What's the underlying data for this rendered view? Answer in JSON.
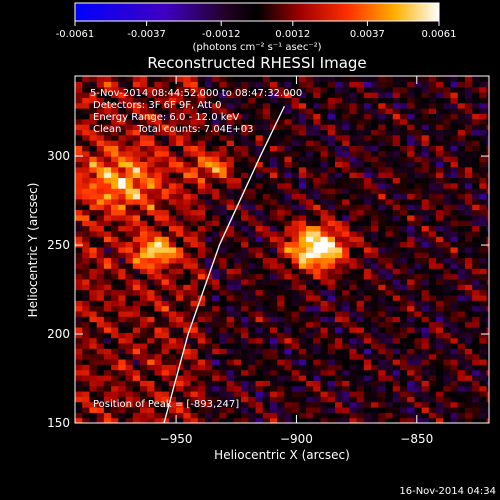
{
  "chart_data": {
    "type": "heatmap",
    "title": "Reconstructed RHESSI Image",
    "xlabel": "Heliocentric X (arcsec)",
    "ylabel": "Heliocentric Y (arcsec)",
    "xlim": [
      -992,
      -820
    ],
    "ylim": [
      150,
      345
    ],
    "x_ticks": [
      -950,
      -900,
      -850
    ],
    "y_ticks": [
      150,
      200,
      250,
      300
    ],
    "colorbar": {
      "range": [
        -0.0061,
        0.0061
      ],
      "tick_values": [
        -0.0061,
        -0.0037,
        -0.0012,
        0.0012,
        0.0037,
        0.0061
      ],
      "tick_labels": [
        "-0.0061",
        "-0.0037",
        "-0.0012",
        "0.0012",
        "0.0037",
        "0.0061"
      ],
      "units_label": "(photons cm⁻² s⁻¹ asec⁻²)"
    },
    "annotations": [
      "5-Nov-2014 08:44:52.000 to 08:47:32.000",
      "Detectors: 3F 6F 9F, Att 0",
      "Energy Range: 6.0 - 12.0 keV",
      "Clean     Total counts: 7.04E+03"
    ],
    "peak_label": "Position of Peak = [-893,247]",
    "peak": {
      "x": -893,
      "y": 247
    },
    "limb_curve": [
      [
        -955,
        150
      ],
      [
        -945,
        200
      ],
      [
        -932,
        250
      ],
      [
        -915,
        300
      ],
      [
        -905,
        328
      ]
    ],
    "sources": [
      {
        "x": -893,
        "y": 247,
        "amp": 1.0,
        "sigma": 9
      },
      {
        "x": -960,
        "y": 245,
        "amp": 0.65,
        "sigma": 6
      },
      {
        "x": -935,
        "y": 293,
        "amp": 0.55,
        "sigma": 6
      },
      {
        "x": -975,
        "y": 285,
        "amp": 0.5,
        "sigma": 12
      }
    ]
  },
  "footer": {
    "date": "16-Nov-2014 04:34"
  }
}
